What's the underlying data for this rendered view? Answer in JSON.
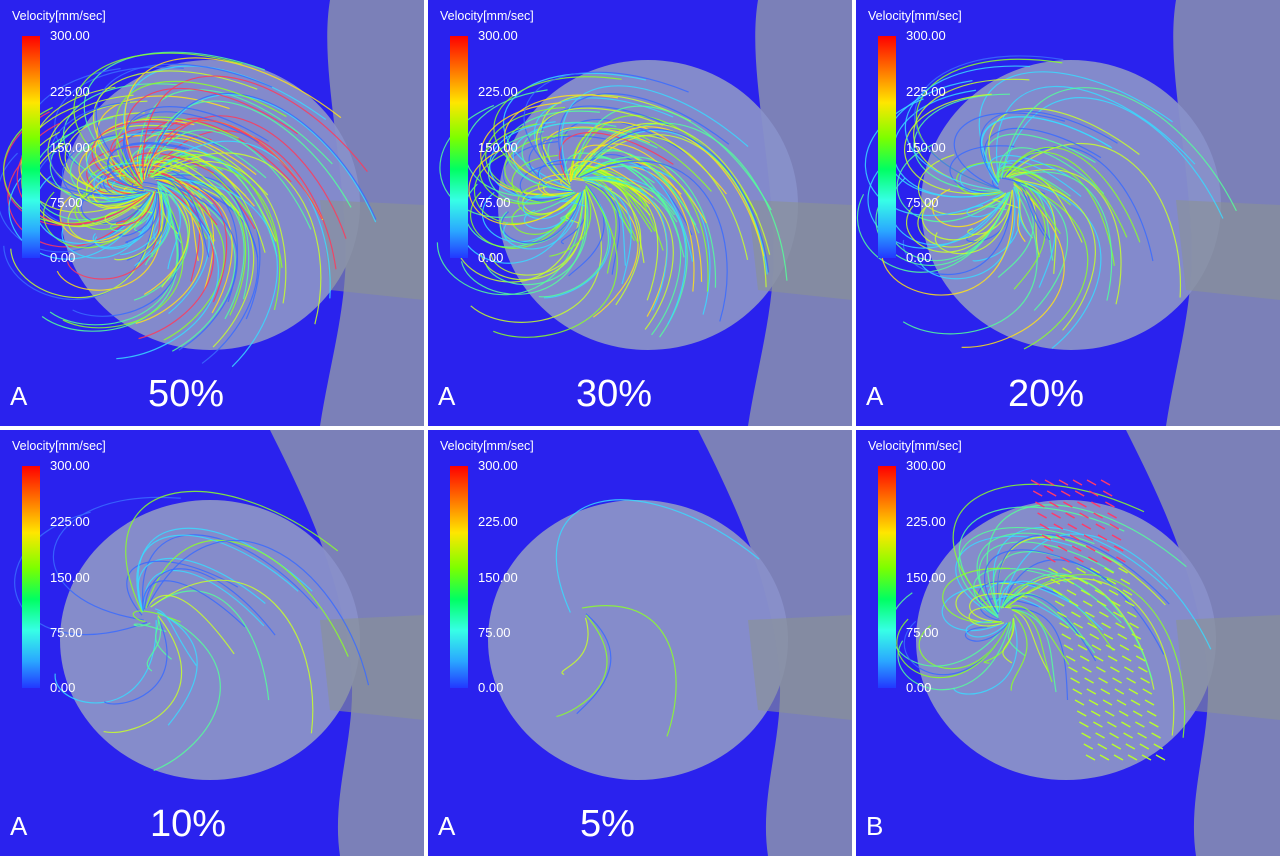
{
  "colorbar": {
    "title": "Velocity[mm/sec]",
    "ticks": [
      "300.00",
      "225.00",
      "150.00",
      "75.00",
      "0.00"
    ],
    "colors": [
      "#ff0000",
      "#ff7a00",
      "#ffe600",
      "#7cff00",
      "#00ff62",
      "#37ffe6",
      "#2aa6ff",
      "#2238ff"
    ]
  },
  "background_color": "#2a22ee",
  "panels": [
    {
      "letter": "A",
      "percent": "50%",
      "flow_density": 1.0
    },
    {
      "letter": "A",
      "percent": "30%",
      "flow_density": 0.7
    },
    {
      "letter": "A",
      "percent": "20%",
      "flow_density": 0.45
    },
    {
      "letter": "A",
      "percent": "10%",
      "flow_density": 0.15
    },
    {
      "letter": "A",
      "percent": "5%",
      "flow_density": 0.03
    },
    {
      "letter": "B",
      "percent": "",
      "flow_density": 0.3
    }
  ]
}
